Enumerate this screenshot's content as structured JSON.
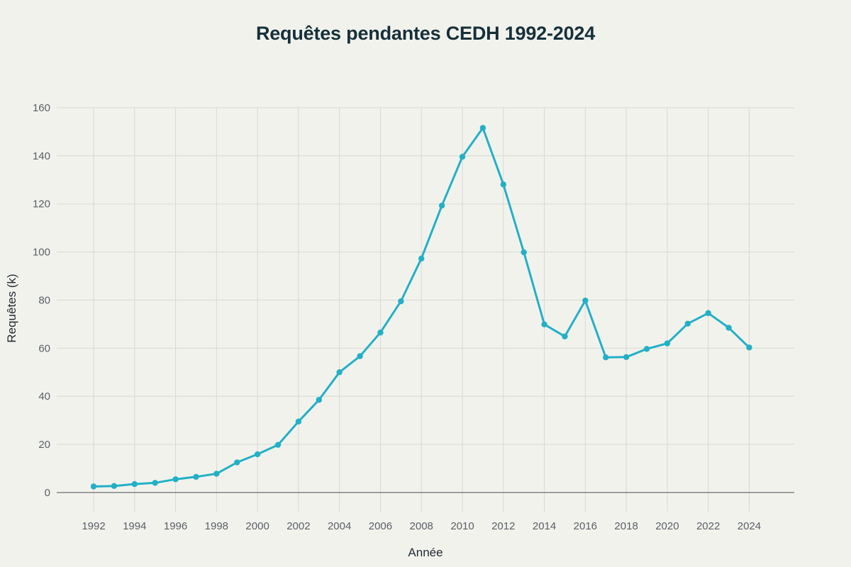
{
  "chart_data": {
    "type": "line",
    "title": "Requêtes pendantes CEDH 1992-2024",
    "xlabel": "Année",
    "ylabel": "Requêtes (k)",
    "xlim": [
      1990.2,
      2026.2
    ],
    "ylim": [
      -8,
      160
    ],
    "x_ticks": [
      1992,
      1994,
      1996,
      1998,
      2000,
      2002,
      2004,
      2006,
      2008,
      2010,
      2012,
      2014,
      2016,
      2018,
      2020,
      2022,
      2024
    ],
    "y_ticks": [
      0,
      20,
      40,
      60,
      80,
      100,
      120,
      140,
      160
    ],
    "grid": true,
    "series": [
      {
        "color": "#23b0c6",
        "x": [
          1992,
          1993,
          1994,
          1995,
          1996,
          1997,
          1998,
          1999,
          2000,
          2001,
          2002,
          2003,
          2004,
          2005,
          2006,
          2007,
          2008,
          2009,
          2010,
          2011,
          2012,
          2013,
          2014,
          2015,
          2016,
          2017,
          2018,
          2019,
          2020,
          2021,
          2022,
          2023,
          2024
        ],
        "y": [
          2.5,
          2.7,
          3.5,
          4.0,
          5.5,
          6.5,
          7.8,
          12.5,
          15.9,
          19.8,
          29.5,
          38.5,
          50.0,
          56.7,
          66.5,
          79.5,
          97.3,
          119.3,
          139.6,
          151.6,
          128.1,
          99.9,
          69.9,
          64.9,
          79.8,
          56.2,
          56.3,
          59.7,
          62.0,
          70.2,
          74.6,
          68.5,
          60.3
        ]
      }
    ]
  }
}
